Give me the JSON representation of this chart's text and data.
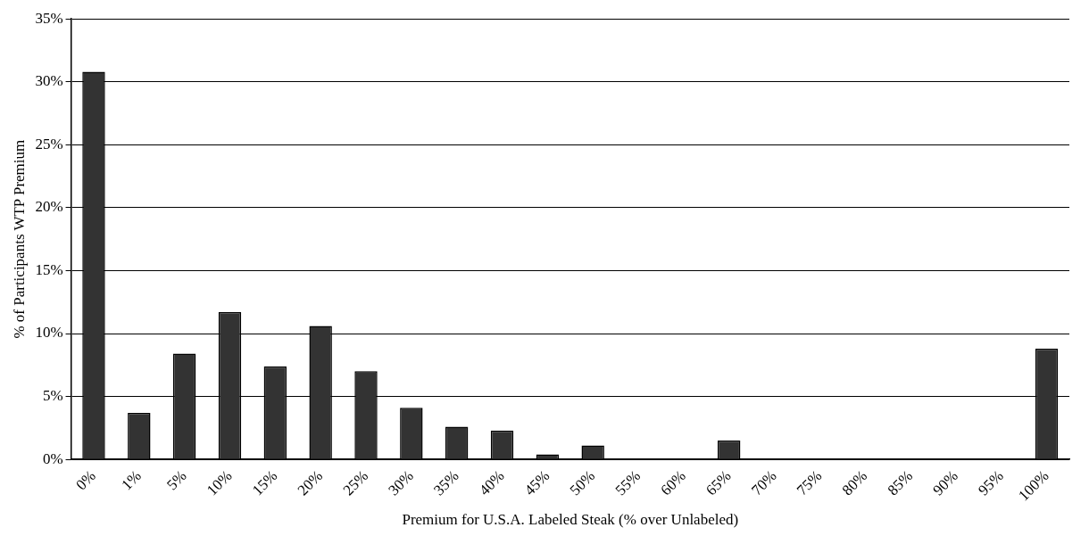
{
  "chart_data": {
    "type": "bar",
    "xlabel": "Premium for U.S.A. Labeled Steak (% over Unlabeled)",
    "ylabel": "% of Participants WTP Premium",
    "categories": [
      "0%",
      "1%",
      "5%",
      "10%",
      "15%",
      "20%",
      "25%",
      "30%",
      "35%",
      "40%",
      "45%",
      "50%",
      "55%",
      "60%",
      "65%",
      "70%",
      "75%",
      "80%",
      "85%",
      "90%",
      "95%",
      "100%"
    ],
    "values": [
      30.8,
      3.7,
      8.4,
      11.7,
      7.4,
      10.6,
      7.0,
      4.1,
      2.6,
      2.3,
      0.4,
      1.1,
      0,
      0,
      1.5,
      0,
      0,
      0,
      0,
      0,
      0,
      8.8
    ],
    "color": "#333333",
    "ylim": [
      0,
      35
    ],
    "yticks": [
      {
        "value": 0,
        "label": "0%"
      },
      {
        "value": 5,
        "label": "5%"
      },
      {
        "value": 10,
        "label": "10%"
      },
      {
        "value": 15,
        "label": "15%"
      },
      {
        "value": 20,
        "label": "20%"
      },
      {
        "value": 25,
        "label": "25%"
      },
      {
        "value": 30,
        "label": "30%"
      },
      {
        "value": 35,
        "label": "35%"
      }
    ],
    "grid": "y",
    "legend": false
  }
}
